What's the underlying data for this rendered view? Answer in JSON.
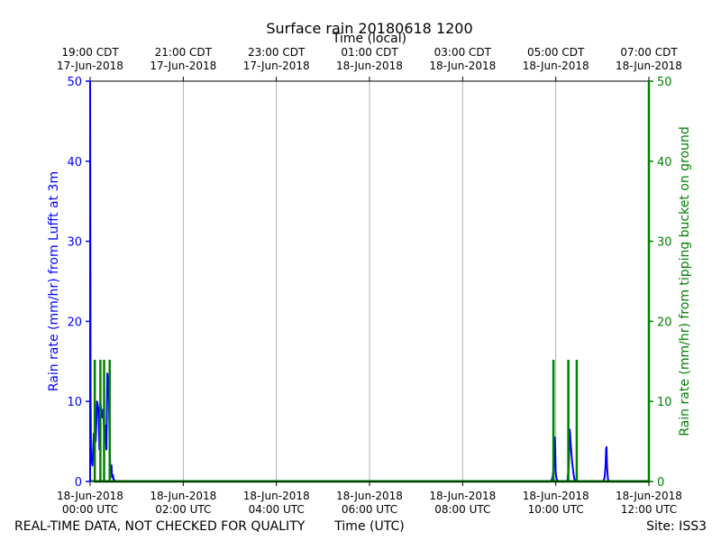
{
  "chart_data": {
    "type": "line",
    "title": "Surface rain 20180618 1200",
    "top_axis_title": "Time (local)",
    "xlabel": "Time (UTC)",
    "ylabel_left": "Rain rate (mm/hr) from Lufft at 3m",
    "ylabel_right": "Rain rate (mm/hr) from tipping bucket on ground",
    "xlim": [
      0,
      12
    ],
    "ylim": [
      0,
      50
    ],
    "grid": "vertical",
    "y_ticks": [
      0,
      10,
      20,
      30,
      40,
      50
    ],
    "x_ticks_bottom": [
      {
        "x": 0,
        "line1": "18-Jun-2018",
        "line2": "00:00 UTC"
      },
      {
        "x": 2,
        "line1": "18-Jun-2018",
        "line2": "02:00 UTC"
      },
      {
        "x": 4,
        "line1": "18-Jun-2018",
        "line2": "04:00 UTC"
      },
      {
        "x": 6,
        "line1": "18-Jun-2018",
        "line2": "06:00 UTC"
      },
      {
        "x": 8,
        "line1": "18-Jun-2018",
        "line2": "08:00 UTC"
      },
      {
        "x": 10,
        "line1": "18-Jun-2018",
        "line2": "10:00 UTC"
      },
      {
        "x": 12,
        "line1": "18-Jun-2018",
        "line2": "12:00 UTC"
      }
    ],
    "x_ticks_top": [
      {
        "x": 0,
        "line1": "19:00 CDT",
        "line2": "17-Jun-2018"
      },
      {
        "x": 2,
        "line1": "21:00 CDT",
        "line2": "17-Jun-2018"
      },
      {
        "x": 4,
        "line1": "23:00 CDT",
        "line2": "17-Jun-2018"
      },
      {
        "x": 6,
        "line1": "01:00 CDT",
        "line2": "18-Jun-2018"
      },
      {
        "x": 8,
        "line1": "03:00 CDT",
        "line2": "18-Jun-2018"
      },
      {
        "x": 10,
        "line1": "05:00 CDT",
        "line2": "18-Jun-2018"
      },
      {
        "x": 12,
        "line1": "07:00 CDT",
        "line2": "18-Jun-2018"
      }
    ],
    "series": [
      {
        "name": "Lufft at 3m",
        "axis": "left",
        "color": "#0000ff",
        "x": [
          0,
          0.01,
          0.02,
          0.05,
          0.08,
          0.12,
          0.15,
          0.18,
          0.2,
          0.22,
          0.25,
          0.28,
          0.31,
          0.33,
          0.35,
          0.37,
          0.4,
          0.42,
          0.44,
          0.46,
          0.47,
          0.49,
          0.5,
          0.52,
          0.55,
          0.58,
          0.6,
          12,
          9.9,
          9.93,
          9.96,
          9.98,
          10.0,
          10.02,
          10.05,
          10.25,
          10.28,
          10.3,
          10.33,
          10.35,
          10.38,
          10.4,
          10.43,
          11.02,
          11.05,
          11.07,
          11.08,
          11.09,
          11.1,
          11.12,
          11.15
        ],
        "y": [
          50,
          10,
          3,
          2,
          6,
          5,
          10,
          9,
          4,
          10,
          8,
          9,
          5,
          7,
          4,
          13.5,
          12,
          4,
          1,
          2,
          0.5,
          0.8,
          0.3,
          0.2,
          0,
          0,
          0,
          0,
          0,
          0.5,
          2,
          5.5,
          1,
          0.3,
          0,
          0,
          2,
          6.5,
          4,
          2.5,
          1,
          0.3,
          0,
          0,
          0.5,
          2,
          4,
          4.3,
          2,
          0.3,
          0
        ]
      },
      {
        "name": "Tipping bucket on ground",
        "axis": "right",
        "color": "#008000",
        "x": [
          0.1,
          0.1,
          0.1,
          0.22,
          0.22,
          0.22,
          0.3,
          0.3,
          0.3,
          0.42,
          0.42,
          0.42,
          9.95,
          9.95,
          9.95,
          10.27,
          10.27,
          10.27,
          10.45,
          10.45,
          10.45,
          12,
          12,
          12
        ],
        "y": [
          0,
          15.2,
          0,
          0,
          15.2,
          0,
          0,
          15.2,
          0,
          0,
          15.2,
          0,
          0,
          15.2,
          0,
          0,
          15.2,
          0,
          0,
          15.2,
          0,
          0,
          50,
          0
        ]
      }
    ]
  },
  "footer": {
    "quality_note": "REAL-TIME DATA, NOT CHECKED FOR QUALITY",
    "site": "Site: ISS3"
  },
  "colors": {
    "left_axis": "#0000ff",
    "right_axis": "#008000",
    "grid": "#b0b0b0",
    "frame": "#000000"
  }
}
